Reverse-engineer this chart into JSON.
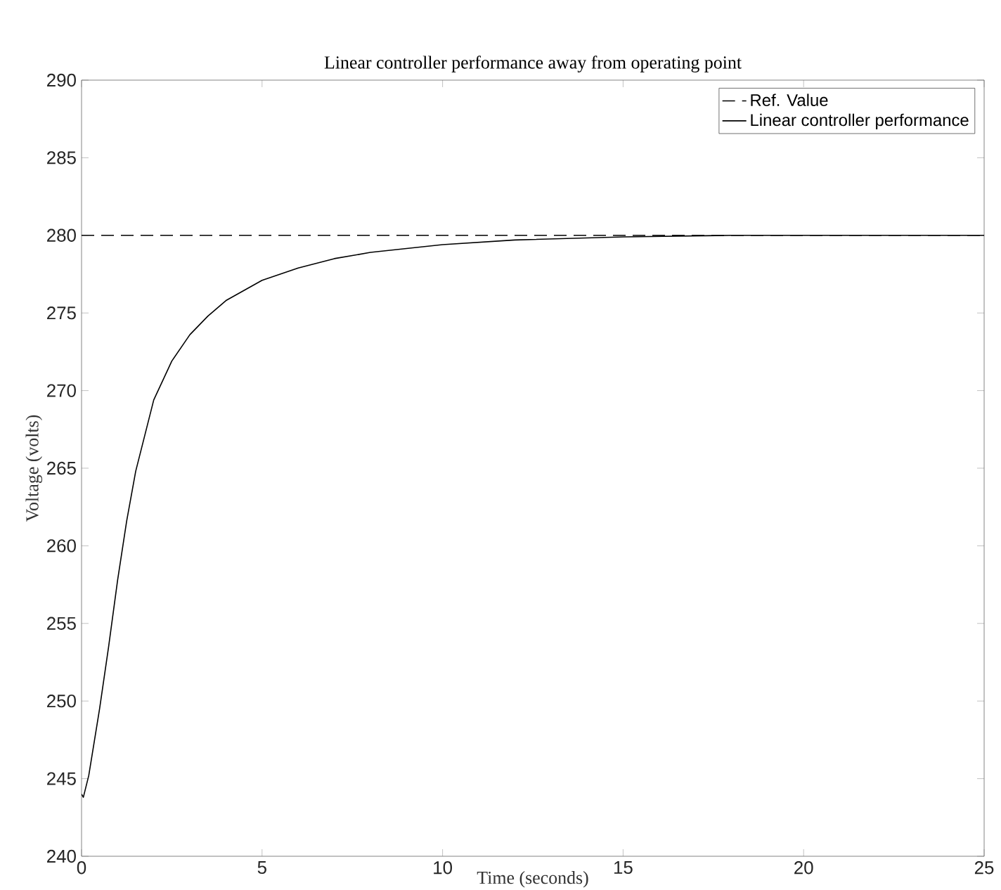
{
  "chart_data": {
    "type": "line",
    "title": "Linear controller performance away from operating point",
    "xlabel": "Time (seconds)",
    "ylabel": "Voltage (volts)",
    "xlim": [
      0,
      25
    ],
    "ylim": [
      240,
      290
    ],
    "xticks": [
      0,
      5,
      10,
      15,
      20,
      25
    ],
    "yticks": [
      240,
      245,
      250,
      255,
      260,
      265,
      270,
      275,
      280,
      285,
      290
    ],
    "grid": false,
    "legend": "top right",
    "marker": "none",
    "series": [
      {
        "name": "Ref. Value",
        "color": "#000000",
        "line_style": "dashed",
        "x": [
          0,
          25
        ],
        "values": [
          280,
          280
        ]
      },
      {
        "name": "Linear controller performance",
        "color": "#000000",
        "line_style": "solid",
        "x": [
          0,
          0.05,
          0.2,
          0.5,
          0.75,
          1.0,
          1.25,
          1.5,
          2.0,
          2.5,
          3.0,
          3.5,
          4,
          5,
          6,
          7,
          8,
          10,
          12,
          15,
          18,
          25
        ],
        "values": [
          244.0,
          243.8,
          245.2,
          249.5,
          253.5,
          257.8,
          261.6,
          264.8,
          269.4,
          271.9,
          273.6,
          274.8,
          275.8,
          277.1,
          277.9,
          278.5,
          278.9,
          279.4,
          279.7,
          279.9,
          280,
          280
        ]
      }
    ]
  }
}
